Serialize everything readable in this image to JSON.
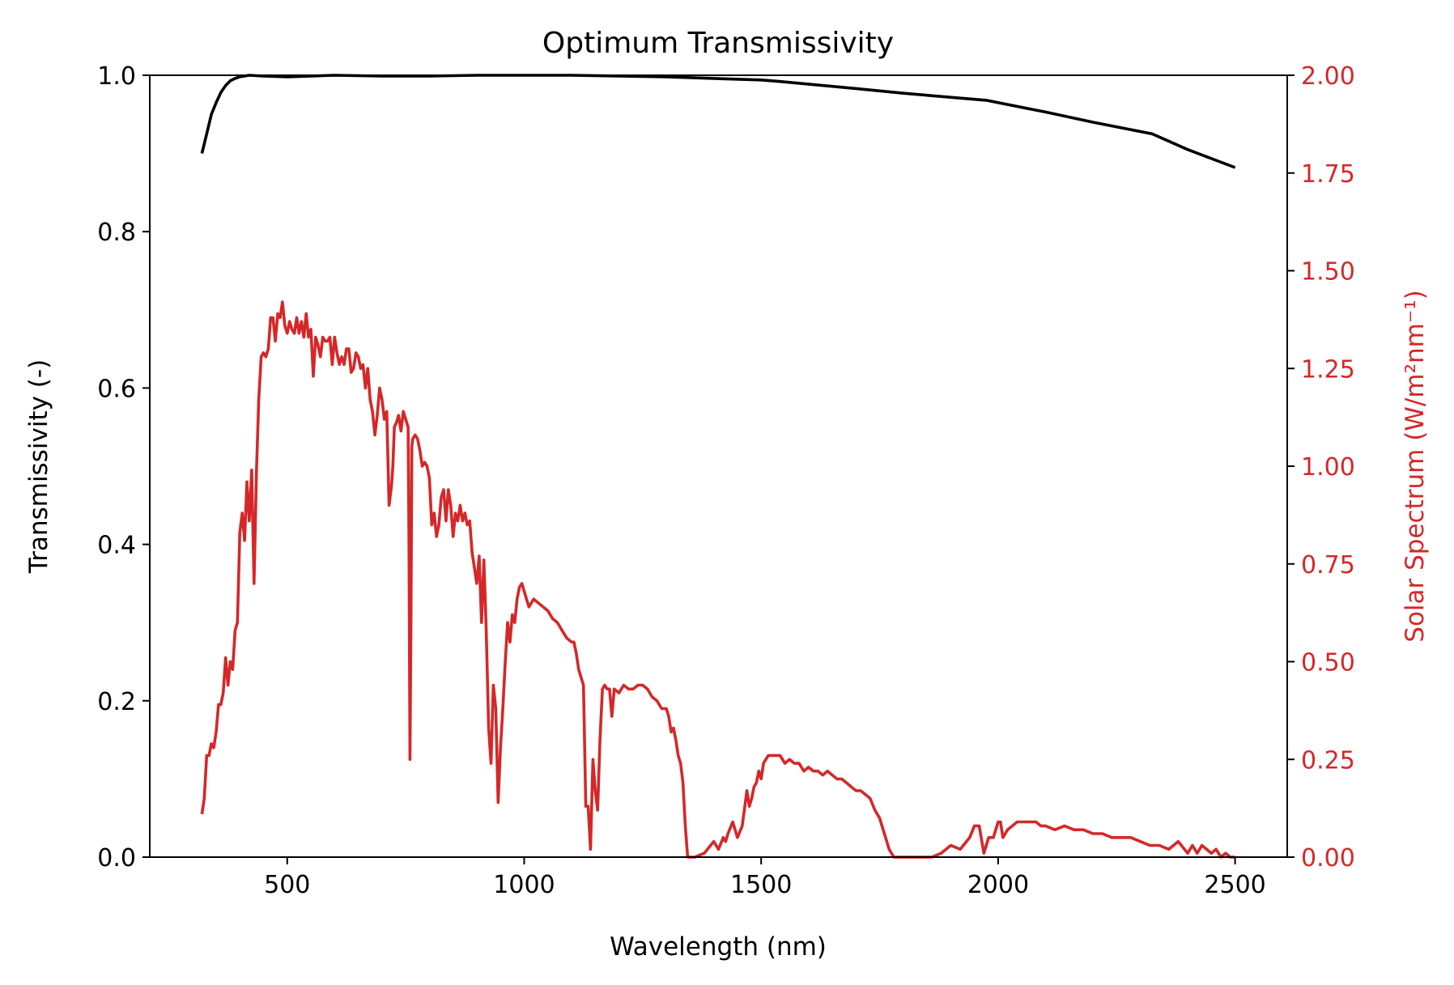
{
  "chart_data": {
    "type": "line",
    "title": "Optimum Transmissivity",
    "xlabel": "Wavelength (nm)",
    "ylabel": "Transmissivity (-)",
    "y2label": "Solar Spectrum (W/m²nm⁻¹)",
    "xlim": [
      210,
      2610
    ],
    "ylim": [
      0,
      1.0
    ],
    "y2lim": [
      0,
      2.0
    ],
    "xticks": [
      "500",
      "1000",
      "1500",
      "2000",
      "2500"
    ],
    "yticks": [
      "0.0",
      "0.2",
      "0.4",
      "0.6",
      "0.8",
      "1.0"
    ],
    "y2ticks": [
      "0.00",
      "0.25",
      "0.50",
      "0.75",
      "1.00",
      "1.25",
      "1.50",
      "1.75",
      "2.00"
    ],
    "grid": false,
    "colors": {
      "transmissivity": "#000000",
      "solar": "#d62728",
      "axis": "#000000"
    },
    "series": [
      {
        "axis": "left",
        "x": [
          320,
          330,
          340,
          350,
          360,
          370,
          380,
          390,
          400,
          420,
          450,
          500,
          600,
          700,
          800,
          900,
          1000,
          1100,
          1200,
          1300,
          1400,
          1500,
          1540,
          1700,
          1800,
          1975,
          2100,
          2200,
          2325,
          2400,
          2500
        ],
        "values": [
          0.9,
          0.925,
          0.95,
          0.965,
          0.978,
          0.987,
          0.993,
          0.996,
          0.998,
          1.0,
          0.999,
          0.998,
          1.0,
          0.999,
          0.999,
          1.0,
          1.0,
          1.0,
          0.999,
          0.998,
          0.996,
          0.994,
          0.992,
          0.983,
          0.977,
          0.968,
          0.953,
          0.94,
          0.925,
          0.905,
          0.882
        ]
      },
      {
        "axis": "right",
        "x": [
          320,
          325,
          330,
          335,
          340,
          345,
          350,
          355,
          360,
          365,
          370,
          375,
          380,
          385,
          390,
          395,
          400,
          405,
          410,
          415,
          420,
          425,
          430,
          435,
          440,
          445,
          450,
          455,
          460,
          465,
          470,
          475,
          480,
          485,
          490,
          495,
          500,
          505,
          510,
          515,
          520,
          525,
          530,
          535,
          540,
          545,
          550,
          555,
          560,
          565,
          570,
          575,
          580,
          585,
          590,
          595,
          600,
          605,
          610,
          615,
          620,
          625,
          630,
          635,
          640,
          645,
          650,
          655,
          660,
          665,
          670,
          675,
          680,
          685,
          687,
          690,
          695,
          700,
          705,
          710,
          715,
          720,
          723,
          726,
          730,
          735,
          740,
          745,
          750,
          755,
          757,
          759,
          761,
          763,
          765,
          770,
          775,
          780,
          785,
          790,
          795,
          800,
          805,
          810,
          815,
          820,
          825,
          830,
          835,
          840,
          845,
          850,
          855,
          860,
          865,
          870,
          875,
          880,
          885,
          890,
          895,
          900,
          905,
          910,
          915,
          920,
          925,
          930,
          935,
          940,
          945,
          950,
          955,
          960,
          965,
          970,
          975,
          980,
          985,
          990,
          995,
          1000,
          1010,
          1020,
          1030,
          1040,
          1050,
          1060,
          1070,
          1080,
          1090,
          1100,
          1105,
          1110,
          1115,
          1120,
          1125,
          1130,
          1135,
          1140,
          1145,
          1150,
          1155,
          1160,
          1165,
          1170,
          1175,
          1180,
          1185,
          1190,
          1200,
          1210,
          1220,
          1230,
          1240,
          1250,
          1260,
          1270,
          1280,
          1290,
          1300,
          1305,
          1310,
          1315,
          1320,
          1325,
          1330,
          1335,
          1340,
          1345,
          1350,
          1355,
          1360,
          1380,
          1400,
          1410,
          1420,
          1425,
          1430,
          1440,
          1450,
          1460,
          1470,
          1475,
          1480,
          1485,
          1490,
          1495,
          1500,
          1505,
          1510,
          1515,
          1520,
          1530,
          1540,
          1550,
          1560,
          1570,
          1580,
          1590,
          1600,
          1610,
          1620,
          1630,
          1640,
          1650,
          1660,
          1670,
          1680,
          1690,
          1700,
          1710,
          1720,
          1730,
          1740,
          1750,
          1760,
          1770,
          1780,
          1790,
          1800,
          1810,
          1820,
          1840,
          1860,
          1880,
          1900,
          1920,
          1940,
          1950,
          1960,
          1970,
          1980,
          1990,
          2000,
          2005,
          2010,
          2020,
          2030,
          2040,
          2050,
          2060,
          2070,
          2080,
          2090,
          2100,
          2120,
          2140,
          2160,
          2180,
          2200,
          2220,
          2240,
          2260,
          2280,
          2300,
          2320,
          2340,
          2360,
          2380,
          2400,
          2410,
          2420,
          2430,
          2440,
          2450,
          2460,
          2470,
          2480,
          2490,
          2500
        ],
        "values": [
          0.11,
          0.15,
          0.26,
          0.26,
          0.29,
          0.28,
          0.32,
          0.39,
          0.39,
          0.42,
          0.51,
          0.44,
          0.5,
          0.48,
          0.58,
          0.6,
          0.83,
          0.88,
          0.81,
          0.96,
          0.86,
          0.99,
          0.7,
          0.98,
          1.17,
          1.28,
          1.29,
          1.28,
          1.3,
          1.38,
          1.38,
          1.32,
          1.39,
          1.38,
          1.42,
          1.36,
          1.34,
          1.37,
          1.35,
          1.34,
          1.38,
          1.34,
          1.37,
          1.33,
          1.39,
          1.33,
          1.35,
          1.23,
          1.33,
          1.31,
          1.28,
          1.33,
          1.32,
          1.32,
          1.33,
          1.26,
          1.33,
          1.29,
          1.26,
          1.28,
          1.26,
          1.3,
          1.3,
          1.24,
          1.25,
          1.29,
          1.28,
          1.25,
          1.26,
          1.2,
          1.25,
          1.17,
          1.14,
          1.08,
          1.1,
          1.13,
          1.2,
          1.17,
          1.12,
          1.14,
          0.9,
          0.95,
          1.0,
          1.1,
          1.11,
          1.13,
          1.09,
          1.14,
          1.12,
          1.1,
          0.8,
          0.25,
          0.6,
          1.05,
          1.07,
          1.08,
          1.07,
          1.04,
          1.0,
          1.01,
          1.0,
          0.97,
          0.85,
          0.88,
          0.82,
          0.85,
          0.92,
          0.94,
          0.86,
          0.94,
          0.9,
          0.82,
          0.88,
          0.86,
          0.9,
          0.86,
          0.88,
          0.85,
          0.86,
          0.78,
          0.74,
          0.7,
          0.77,
          0.6,
          0.76,
          0.58,
          0.33,
          0.24,
          0.44,
          0.38,
          0.14,
          0.28,
          0.38,
          0.5,
          0.6,
          0.55,
          0.62,
          0.6,
          0.66,
          0.69,
          0.7,
          0.68,
          0.64,
          0.66,
          0.65,
          0.64,
          0.63,
          0.61,
          0.6,
          0.58,
          0.56,
          0.55,
          0.55,
          0.52,
          0.48,
          0.46,
          0.44,
          0.13,
          0.13,
          0.02,
          0.25,
          0.17,
          0.12,
          0.3,
          0.43,
          0.44,
          0.43,
          0.43,
          0.36,
          0.43,
          0.42,
          0.44,
          0.43,
          0.43,
          0.44,
          0.44,
          0.43,
          0.41,
          0.4,
          0.38,
          0.38,
          0.36,
          0.32,
          0.33,
          0.3,
          0.26,
          0.24,
          0.19,
          0.08,
          0.0,
          0.0,
          0.0,
          0.0,
          0.01,
          0.04,
          0.02,
          0.05,
          0.04,
          0.06,
          0.09,
          0.05,
          0.08,
          0.17,
          0.13,
          0.15,
          0.18,
          0.19,
          0.22,
          0.2,
          0.24,
          0.25,
          0.26,
          0.26,
          0.26,
          0.26,
          0.24,
          0.25,
          0.24,
          0.24,
          0.22,
          0.23,
          0.22,
          0.22,
          0.21,
          0.22,
          0.21,
          0.2,
          0.2,
          0.19,
          0.18,
          0.17,
          0.17,
          0.16,
          0.15,
          0.12,
          0.1,
          0.06,
          0.02,
          0.0,
          0.0,
          0.0,
          0.0,
          0.0,
          0.0,
          0.0,
          0.01,
          0.03,
          0.02,
          0.05,
          0.08,
          0.08,
          0.01,
          0.05,
          0.05,
          0.09,
          0.09,
          0.05,
          0.07,
          0.08,
          0.09,
          0.09,
          0.09,
          0.09,
          0.09,
          0.08,
          0.08,
          0.07,
          0.08,
          0.07,
          0.07,
          0.06,
          0.06,
          0.05,
          0.05,
          0.05,
          0.04,
          0.03,
          0.03,
          0.02,
          0.04,
          0.01,
          0.03,
          0.01,
          0.03,
          0.02,
          0.01,
          0.02,
          0.0,
          0.01,
          0.0,
          0.0
        ]
      }
    ]
  }
}
